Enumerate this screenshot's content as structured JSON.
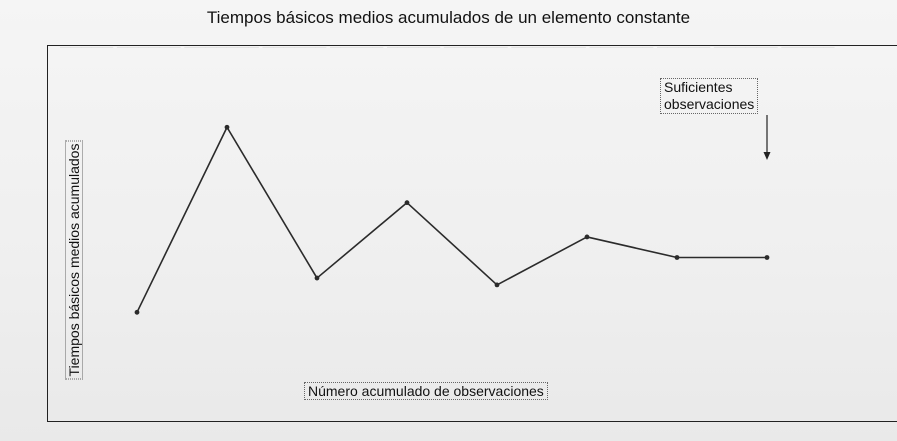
{
  "chart_data": {
    "type": "line",
    "title": "Tiempos básicos medios acumulados de un elemento constante",
    "xlabel": "Número acumulado de observaciones",
    "ylabel": "Tiempos básicos medios acumulados",
    "x": [
      1,
      2,
      3,
      4,
      5,
      6,
      7,
      8
    ],
    "y": [
      1.6,
      4.3,
      2.1,
      3.2,
      2.0,
      2.7,
      2.4,
      2.4
    ],
    "xlim": [
      0,
      9.5
    ],
    "ylim": [
      0,
      5.5
    ],
    "grid": false,
    "annotation": {
      "lines": [
        "Suficientes",
        "observaciones"
      ],
      "x": 8
    }
  },
  "colors": {
    "line": "#2b2b2b",
    "frame": "#222222",
    "text": "#111111"
  }
}
